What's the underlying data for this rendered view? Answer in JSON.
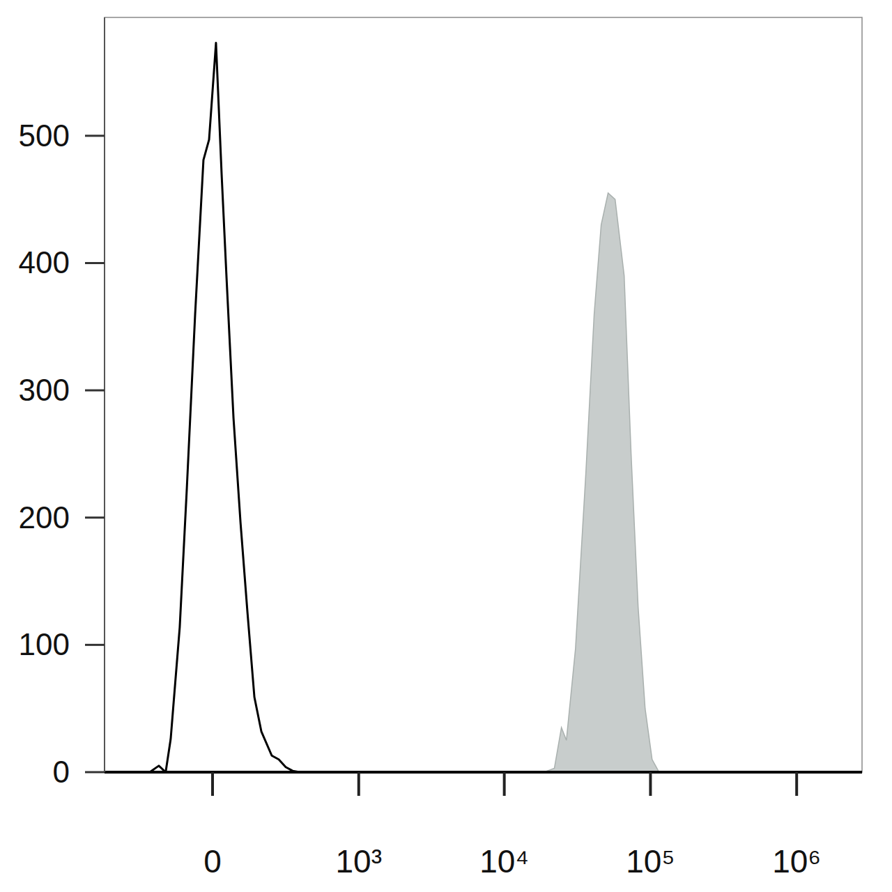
{
  "chart_data": {
    "type": "histogram",
    "log": "x",
    "grid": false,
    "xlim": [
      -535,
      2800000
    ],
    "ylim": [
      0,
      593
    ],
    "xticks": [
      0,
      {
        "value": 1000,
        "label": "10³"
      },
      {
        "value": 10000,
        "label": "10⁴"
      },
      {
        "value": 100000,
        "label": "10⁵"
      },
      {
        "value": 1000000,
        "label": "10⁶"
      }
    ],
    "yticks": [
      0,
      100,
      200,
      300,
      400,
      500
    ],
    "series": [
      {
        "type": "area",
        "color": "#c8cdcc",
        "x": [
          18700,
          22000,
          24600,
          26600,
          30700,
          36100,
          41200,
          46000,
          51300,
          57300,
          66100,
          73700,
          82300,
          91900,
          102600,
          114500
        ],
        "values": [
          0,
          3,
          35,
          25,
          97,
          234,
          360,
          430,
          455,
          450,
          390,
          250,
          130,
          50,
          10,
          0
        ]
      },
      {
        "type": "line",
        "color": "#000000",
        "x": [
          -234,
          -192,
          -163,
          -143,
          -109,
          -84,
          -56,
          -29,
          -11,
          11,
          29,
          45,
          68,
          92,
          117,
          143,
          171,
          217,
          251,
          288,
          328,
          374
        ],
        "values": [
          0,
          5,
          0,
          26,
          114,
          223,
          360,
          481,
          497,
          573,
          470,
          388,
          278,
          196,
          125,
          59,
          32,
          13,
          10,
          4,
          1,
          0
        ]
      }
    ]
  }
}
